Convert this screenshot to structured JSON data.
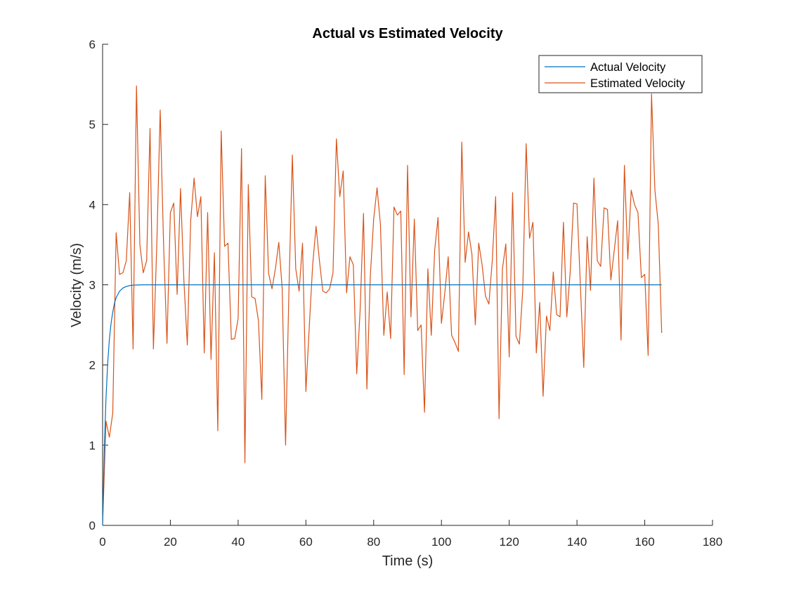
{
  "chart_data": {
    "type": "line",
    "title": "Actual vs Estimated Velocity",
    "xlabel": "Time (s)",
    "ylabel": "Velocity (m/s)",
    "xlim": [
      0,
      180
    ],
    "ylim": [
      0,
      6
    ],
    "xticks": [
      0,
      20,
      40,
      60,
      80,
      100,
      120,
      140,
      160,
      180
    ],
    "yticks": [
      0,
      1,
      2,
      3,
      4,
      5,
      6
    ],
    "xtick_labels": [
      "0",
      "20",
      "40",
      "60",
      "80",
      "100",
      "120",
      "140",
      "160",
      "180"
    ],
    "ytick_labels": [
      "0",
      "1",
      "2",
      "3",
      "4",
      "5",
      "6"
    ],
    "grid": false,
    "legend": {
      "location": "top-right",
      "entries": [
        "Actual Velocity",
        "Estimated Velocity"
      ]
    },
    "series": [
      {
        "name": "Actual Velocity",
        "color": "#0072BD",
        "x": [
          0,
          0.5,
          1,
          1.5,
          2,
          2.5,
          3,
          3.5,
          4,
          5,
          6,
          7,
          8,
          9,
          10,
          11,
          12,
          13,
          14,
          15,
          20,
          40,
          60,
          80,
          100,
          120,
          140,
          165
        ],
        "y": [
          0,
          0.95,
          1.58,
          2.02,
          2.32,
          2.52,
          2.66,
          2.77,
          2.84,
          2.92,
          2.96,
          2.98,
          2.99,
          2.995,
          2.998,
          2.999,
          3.0,
          3.0,
          3.0,
          3.0,
          3.0,
          3.0,
          3.0,
          3.0,
          3.0,
          3.0,
          3.0,
          3.0
        ]
      },
      {
        "name": "Estimated Velocity",
        "color": "#D95319",
        "x": [
          0,
          1,
          2,
          3,
          4,
          5,
          6,
          7,
          8,
          9,
          10,
          11,
          12,
          13,
          14,
          15,
          16,
          17,
          18,
          19,
          20,
          21,
          22,
          23,
          24,
          25,
          26,
          27,
          28,
          29,
          30,
          31,
          32,
          33,
          34,
          35,
          36,
          37,
          38,
          39,
          40,
          41,
          42,
          43,
          44,
          45,
          46,
          47,
          48,
          49,
          50,
          51,
          52,
          53,
          54,
          55,
          56,
          57,
          58,
          59,
          60,
          61,
          62,
          63,
          64,
          65,
          66,
          67,
          68,
          69,
          70,
          71,
          72,
          73,
          74,
          75,
          76,
          77,
          78,
          79,
          80,
          81,
          82,
          83,
          84,
          85,
          86,
          87,
          88,
          89,
          90,
          91,
          92,
          93,
          94,
          95,
          96,
          97,
          98,
          99,
          100,
          101,
          102,
          103,
          104,
          105,
          106,
          107,
          108,
          109,
          110,
          111,
          112,
          113,
          114,
          115,
          116,
          117,
          118,
          119,
          120,
          121,
          122,
          123,
          124,
          125,
          126,
          127,
          128,
          129,
          130,
          131,
          132,
          133,
          134,
          135,
          136,
          137,
          138,
          139,
          140,
          141,
          142,
          143,
          144,
          145,
          146,
          147,
          148,
          149,
          150,
          151,
          152,
          153,
          154,
          155,
          156,
          157,
          158,
          159,
          160,
          161,
          162,
          163,
          164,
          165
        ],
        "y": [
          0.0,
          1.3,
          1.1,
          1.4,
          3.65,
          3.13,
          3.15,
          3.3,
          4.15,
          2.2,
          5.48,
          3.5,
          3.15,
          3.3,
          4.95,
          2.2,
          3.5,
          5.18,
          3.5,
          2.27,
          3.9,
          4.02,
          2.88,
          4.2,
          3.05,
          2.25,
          3.8,
          4.33,
          3.85,
          4.1,
          2.15,
          3.9,
          2.07,
          3.4,
          1.18,
          4.92,
          3.48,
          3.52,
          2.32,
          2.33,
          2.58,
          4.7,
          0.78,
          4.25,
          2.85,
          2.83,
          2.55,
          1.57,
          4.36,
          3.14,
          2.95,
          3.2,
          3.53,
          2.95,
          1.0,
          2.94,
          4.62,
          3.2,
          2.92,
          3.52,
          1.67,
          2.48,
          3.25,
          3.73,
          3.3,
          2.92,
          2.9,
          2.95,
          3.15,
          4.82,
          4.1,
          4.42,
          2.9,
          3.35,
          3.25,
          1.89,
          2.68,
          3.89,
          1.7,
          3.1,
          3.82,
          4.21,
          3.75,
          2.37,
          2.91,
          2.33,
          3.97,
          3.87,
          3.92,
          1.88,
          4.49,
          2.6,
          3.82,
          2.43,
          2.5,
          1.41,
          3.2,
          2.37,
          3.43,
          3.84,
          2.52,
          2.9,
          3.35,
          2.37,
          2.28,
          2.17,
          4.78,
          3.28,
          3.66,
          3.38,
          2.5,
          3.52,
          3.25,
          2.86,
          2.76,
          3.3,
          4.1,
          1.33,
          3.2,
          3.51,
          2.1,
          4.15,
          2.36,
          2.26,
          2.94,
          4.76,
          3.58,
          3.78,
          2.15,
          2.78,
          1.61,
          2.61,
          2.43,
          3.16,
          2.63,
          2.6,
          3.78,
          2.6,
          3.16,
          4.02,
          4.01,
          3.0,
          1.97,
          3.6,
          2.93,
          4.33,
          3.3,
          3.23,
          3.96,
          3.94,
          3.06,
          3.43,
          3.8,
          2.31,
          4.49,
          3.32,
          4.18,
          4.0,
          3.9,
          3.09,
          3.13,
          2.12,
          5.38,
          4.18,
          3.75,
          2.4
        ]
      }
    ]
  }
}
